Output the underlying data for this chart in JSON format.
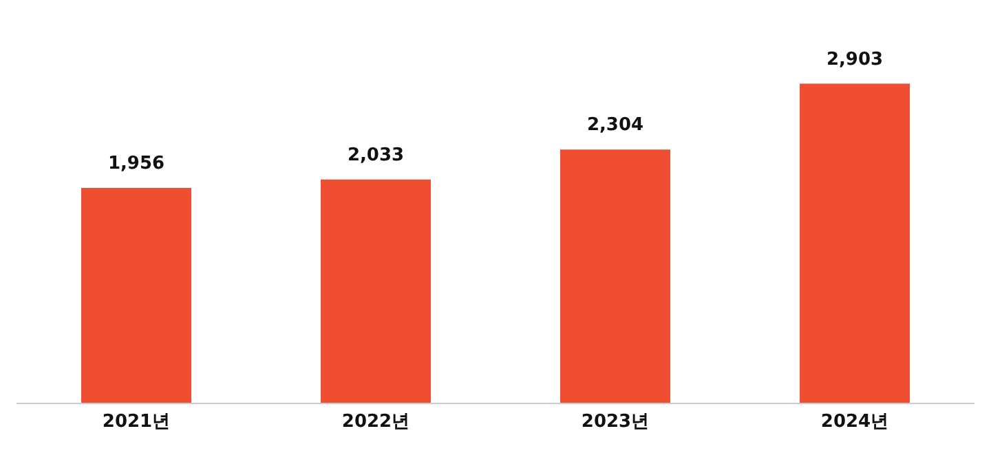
{
  "chart_data": {
    "type": "bar",
    "categories": [
      "2021년",
      "2022년",
      "2023년",
      "2024년"
    ],
    "values": [
      1956,
      2033,
      2304,
      2903
    ],
    "value_labels": [
      "1,956",
      "2,033",
      "2,304",
      "2,903"
    ],
    "color": "#f04e30",
    "tick_labels": "x",
    "grid": false,
    "legend": false
  }
}
